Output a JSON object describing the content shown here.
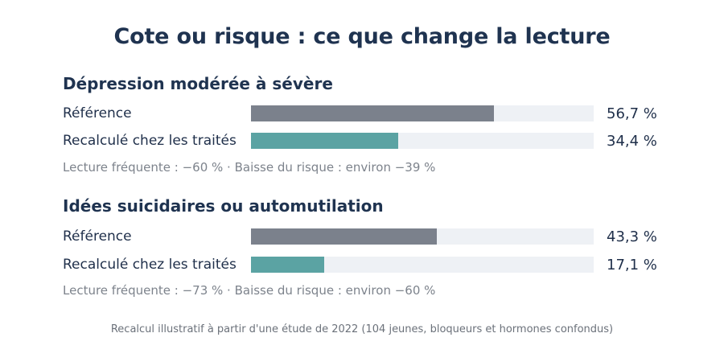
{
  "chart_data": {
    "type": "bar",
    "orientation": "horizontal",
    "title": "Cote ou risque : ce que change la lecture",
    "xlim": [
      0,
      80
    ],
    "unit": "%",
    "groups": [
      {
        "title": "Dépression modérée à sévère",
        "rows": [
          {
            "label": "Référence",
            "value": 56.7,
            "value_label": "56,7 %",
            "color": "#7b818c"
          },
          {
            "label": "Recalculé chez les traités",
            "value": 34.4,
            "value_label": "34,4 %",
            "color": "#5ba3a3"
          }
        ],
        "note": "Lecture fréquente : −60 % · Baisse du risque : environ −39 %"
      },
      {
        "title": "Idées suicidaires ou automutilation",
        "rows": [
          {
            "label": "Référence",
            "value": 43.3,
            "value_label": "43,3 %",
            "color": "#7b818c"
          },
          {
            "label": "Recalculé chez les traités",
            "value": 17.1,
            "value_label": "17,1 %",
            "color": "#5ba3a3"
          }
        ],
        "note": "Lecture fréquente : −73 % · Baisse du risque : environ −60 %"
      }
    ],
    "footer": "Recalcul illustratif à partir d'une étude de 2022 (104 jeunes, bloqueurs et hormones confondus)"
  }
}
